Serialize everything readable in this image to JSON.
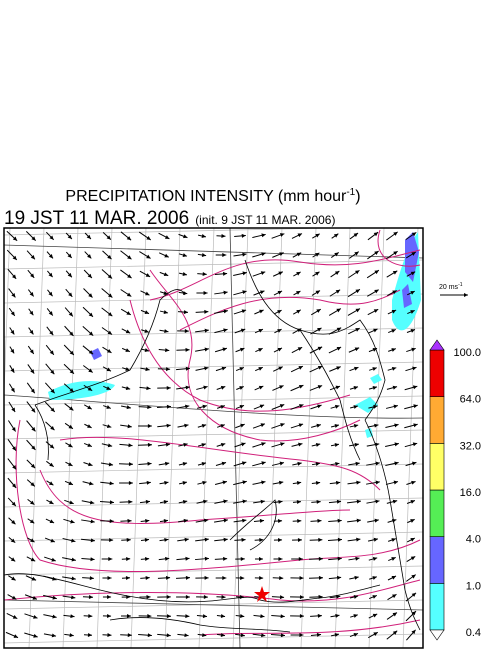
{
  "header": {
    "title_main": "PRECIPITATION INTENSITY (mm hour",
    "title_sup": "-1",
    "title_end": ")",
    "valid_time": "19 JST 11 MAR. 2006",
    "init_time": "(init. 9 JST 11 MAR. 2006)"
  },
  "reference_vector": {
    "label": "20 ms",
    "label_sup": "-1"
  },
  "colorbar": {
    "labels": [
      "0.4",
      "1.0",
      "4.0",
      "16.0",
      "32.0",
      "64.0",
      "100.0"
    ],
    "colors": [
      "#55ffff",
      "#6666ff",
      "#55ee55",
      "#ffff66",
      "#ffaa33",
      "#ee0000"
    ],
    "under_color": "#ffffff",
    "over_color": "#aa33ff"
  }
}
